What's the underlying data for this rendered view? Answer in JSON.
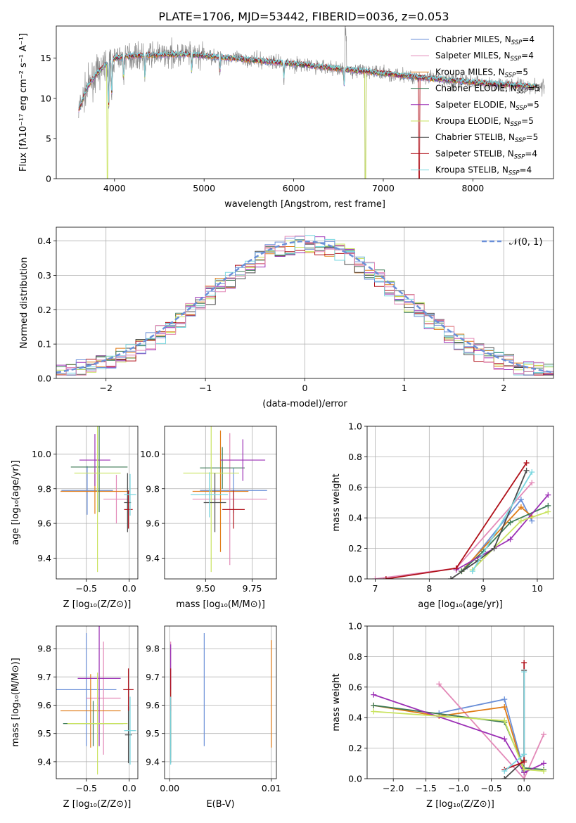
{
  "figure": {
    "title": "PLATE=1706, MJD=53442, FIBERID=0036, z=0.053"
  },
  "colors": [
    "#6a8fd8",
    "#e38ab8",
    "#e07b16",
    "#3d7a56",
    "#9b2fb5",
    "#c9e35f",
    "#4b4b4b",
    "#b0111a",
    "#7ad7e0"
  ],
  "legend": [
    {
      "label": "Chabrier MILES, N",
      "sub": "SSP",
      "tail": "=4"
    },
    {
      "label": "Salpeter MILES, N",
      "sub": "SSP",
      "tail": "=4"
    },
    {
      "label": "Kroupa MILES, N",
      "sub": "SSP",
      "tail": "=5"
    },
    {
      "label": "Chabrier ELODIE, N",
      "sub": "SSP",
      "tail": "=5"
    },
    {
      "label": "Salpeter ELODIE, N",
      "sub": "SSP",
      "tail": "=5"
    },
    {
      "label": "Kroupa ELODIE, N",
      "sub": "SSP",
      "tail": "=5"
    },
    {
      "label": "Chabrier STELIB, N",
      "sub": "SSP",
      "tail": "=5"
    },
    {
      "label": "Salpeter STELIB, N",
      "sub": "SSP",
      "tail": "=4"
    },
    {
      "label": "Kroupa STELIB, N",
      "sub": "SSP",
      "tail": "=4"
    }
  ],
  "chart_data": [
    {
      "type": "line",
      "id": "spectrum",
      "xlabel": "wavelength [Angstrom, rest frame]",
      "ylabel": "Flux [fλ10⁻¹⁷ erg cm⁻² s⁻¹ A⁻¹]",
      "xlim": [
        3350,
        8900
      ],
      "ylim": [
        0,
        19
      ],
      "xticks": [
        "4000",
        "5000",
        "6000",
        "7000",
        "8000"
      ],
      "yticks": [
        "0",
        "5",
        "10",
        "15"
      ],
      "continuum_x": [
        3600,
        3700,
        3800,
        3900,
        4000,
        4200,
        4500,
        4800,
        5100,
        5500,
        6000,
        6500,
        7000,
        7500,
        8000,
        8500,
        8800
      ],
      "continuum_y": [
        8.5,
        11.5,
        13.0,
        14.2,
        15.0,
        15.3,
        15.4,
        15.5,
        15.2,
        14.8,
        14.3,
        13.7,
        13.1,
        12.5,
        12.0,
        11.6,
        11.4
      ],
      "grid": false
    },
    {
      "type": "step",
      "id": "residuals",
      "xlabel": "(data-model)/error",
      "ylabel": "Normed distribution",
      "xlim": [
        -2.5,
        2.5
      ],
      "ylim": [
        0,
        0.44
      ],
      "xticks": [
        "−2",
        "−1",
        "0",
        "1",
        "2"
      ],
      "yticks": [
        "0.0",
        "0.1",
        "0.2",
        "0.3",
        "0.4"
      ],
      "bin_width": 0.1,
      "gaussian_label": "𝒩(0, 1)",
      "grid": true
    },
    {
      "type": "errorbar",
      "id": "age-vs-z",
      "xlabel": "Z [log₁₀(Z/Z⊙)]",
      "ylabel": "age  [log₁₀(age/yr)]",
      "xlim": [
        -0.85,
        0.1
      ],
      "ylim": [
        9.28,
        10.16
      ],
      "xticks": [
        "−0.5",
        "0.0"
      ],
      "yticks": [
        "9.4",
        "9.6",
        "9.8",
        "10.0"
      ],
      "points": [
        {
          "x": -0.49,
          "xerr": 0.3,
          "y": 9.79,
          "yerr": 0.14
        },
        {
          "x": -0.15,
          "xerr": 0.15,
          "y": 9.74,
          "yerr": 0.14
        },
        {
          "x": -0.4,
          "xerr": 0.4,
          "y": 9.785,
          "yerr": 0.13
        },
        {
          "x": -0.35,
          "xerr": 0.33,
          "y": 9.925,
          "yerr": 0.26
        },
        {
          "x": -0.4,
          "xerr": 0.18,
          "y": 9.965,
          "yerr": 0.15
        },
        {
          "x": -0.37,
          "xerr": 0.27,
          "y": 9.89,
          "yerr": 0.57
        },
        {
          "x": -0.02,
          "xerr": 0.04,
          "y": 9.72,
          "yerr": 0.17
        },
        {
          "x": -0.01,
          "xerr": 0.05,
          "y": 9.68,
          "yerr": 0.11
        },
        {
          "x": 0.01,
          "xerr": 0.07,
          "y": 9.765,
          "yerr": 0.12
        }
      ]
    },
    {
      "type": "errorbar",
      "id": "age-vs-mass",
      "xlabel": "mass [log₁₀(M/M⊙)]",
      "ylabel": "",
      "xlim": [
        9.28,
        9.88
      ],
      "ylim": [
        9.28,
        10.16
      ],
      "xticks": [
        "9.50",
        "9.75"
      ],
      "yticks": [
        "9.4",
        "9.6",
        "9.8",
        "10.0"
      ],
      "points": [
        {
          "x": 9.65,
          "xerr": 0.18,
          "y": 9.79,
          "yerr": 0.13
        },
        {
          "x": 9.63,
          "xerr": 0.2,
          "y": 9.74,
          "yerr": 0.38
        },
        {
          "x": 9.58,
          "xerr": 0.15,
          "y": 9.785,
          "yerr": 0.35
        },
        {
          "x": 9.59,
          "xerr": 0.12,
          "y": 9.92,
          "yerr": 0.12
        },
        {
          "x": 9.7,
          "xerr": 0.12,
          "y": 9.965,
          "yerr": 0.12
        },
        {
          "x": 9.53,
          "xerr": 0.15,
          "y": 9.89,
          "yerr": 0.57
        },
        {
          "x": 9.55,
          "xerr": 0.06,
          "y": 9.72,
          "yerr": 0.17
        },
        {
          "x": 9.65,
          "xerr": 0.06,
          "y": 9.68,
          "yerr": 0.11
        },
        {
          "x": 9.52,
          "xerr": 0.1,
          "y": 9.765,
          "yerr": 0.13
        }
      ]
    },
    {
      "type": "line",
      "id": "weight-vs-age",
      "xlabel": "age  [log₁₀(age/yr)]",
      "ylabel": "mass weight",
      "xlim": [
        6.85,
        10.3
      ],
      "ylim": [
        0,
        1
      ],
      "xticks": [
        "7",
        "8",
        "9",
        "10"
      ],
      "yticks": [
        "0.0",
        "0.2",
        "0.4",
        "0.6",
        "0.8",
        "1.0"
      ],
      "grid": true,
      "series": [
        {
          "x": [
            8.7,
            9.7,
            9.9
          ],
          "y": [
            0.08,
            0.52,
            0.38
          ]
        },
        {
          "x": [
            7.0,
            8.5,
            9.9
          ],
          "y": [
            0.0,
            0.07,
            0.63
          ]
        },
        {
          "x": [
            8.6,
            9.7,
            9.9
          ],
          "y": [
            0.05,
            0.47,
            0.41
          ]
        },
        {
          "x": [
            8.6,
            9.0,
            9.5,
            10.2
          ],
          "y": [
            0.05,
            0.18,
            0.37,
            0.48
          ]
        },
        {
          "x": [
            8.5,
            9.5,
            10.2
          ],
          "y": [
            0.06,
            0.26,
            0.55
          ]
        },
        {
          "x": [
            8.8,
            9.7,
            10.2
          ],
          "y": [
            0.06,
            0.38,
            0.44
          ]
        },
        {
          "x": [
            8.4,
            8.9,
            9.2,
            9.8
          ],
          "y": [
            0.0,
            0.12,
            0.2,
            0.71
          ]
        },
        {
          "x": [
            7.2,
            8.5,
            9.8
          ],
          "y": [
            0.0,
            0.07,
            0.76
          ]
        },
        {
          "x": [
            8.8,
            9.9
          ],
          "y": [
            0.05,
            0.7
          ]
        }
      ]
    },
    {
      "type": "errorbar",
      "id": "mass-vs-z",
      "xlabel": "Z [log₁₀(Z/Z⊙)]",
      "ylabel": "mass [log₁₀(M/M⊙)]",
      "xlim": [
        -0.85,
        0.1
      ],
      "ylim": [
        9.34,
        9.88
      ],
      "xticks": [
        "−0.5",
        "0.0"
      ],
      "yticks": [
        "9.4",
        "9.5",
        "9.6",
        "9.7",
        "9.8"
      ],
      "points": [
        {
          "x": -0.5,
          "xerr": 0.35,
          "y": 9.655,
          "yerr": 0.2
        },
        {
          "x": -0.3,
          "xerr": 0.2,
          "y": 9.625,
          "yerr": 0.2
        },
        {
          "x": -0.45,
          "xerr": 0.35,
          "y": 9.58,
          "yerr": 0.13
        },
        {
          "x": -0.42,
          "xerr": 0.35,
          "y": 9.535,
          "yerr": 0.08
        },
        {
          "x": -0.35,
          "xerr": 0.25,
          "y": 9.695,
          "yerr": 0.24
        },
        {
          "x": -0.37,
          "xerr": 0.35,
          "y": 9.535,
          "yerr": 0.18
        },
        {
          "x": -0.01,
          "xerr": 0.04,
          "y": 9.495,
          "yerr": 0.1
        },
        {
          "x": -0.01,
          "xerr": 0.06,
          "y": 9.655,
          "yerr": 0.075
        },
        {
          "x": 0.01,
          "xerr": 0.07,
          "y": 9.51,
          "yerr": 0.12
        }
      ]
    },
    {
      "type": "errorbar",
      "id": "mass-vs-ebv",
      "xlabel": "E(B-V)",
      "ylabel": "",
      "xlim": [
        -0.0005,
        0.0105
      ],
      "ylim": [
        9.34,
        9.88
      ],
      "xticks": [
        "0.00",
        "0.01"
      ],
      "yticks": [
        "9.4",
        "9.5",
        "9.6",
        "9.7",
        "9.8"
      ],
      "points": [
        {
          "x": 0.0034,
          "y": 9.655,
          "yerr": 0.2
        },
        {
          "x": 0.0001,
          "y": 9.625,
          "yerr": 0.2
        },
        {
          "x": 0.01,
          "y": 9.64,
          "yerr": 0.19
        },
        {
          "x": 0.0001,
          "y": 9.535,
          "yerr": 0.08
        },
        {
          "x": 0.0001,
          "y": 9.695,
          "yerr": 0.12
        },
        {
          "x": 0.0001,
          "y": 9.535,
          "yerr": 0.12
        },
        {
          "x": 0.0001,
          "y": 9.495,
          "yerr": 0.1
        },
        {
          "x": 0.0001,
          "y": 9.655,
          "yerr": 0.075
        },
        {
          "x": 0.0001,
          "y": 9.51,
          "yerr": 0.12
        }
      ]
    },
    {
      "type": "line",
      "id": "weight-vs-z",
      "xlabel": "Z [log₁₀(Z/Z⊙)]",
      "ylabel": "mass weight",
      "xlim": [
        -2.4,
        0.45
      ],
      "ylim": [
        0,
        1
      ],
      "xticks": [
        "−2.0",
        "−1.5",
        "−1.0",
        "−0.5",
        "0.0"
      ],
      "yticks": [
        "0.0",
        "0.2",
        "0.4",
        "0.6",
        "0.8",
        "1.0"
      ],
      "grid": true,
      "series": [
        {
          "x": [
            -1.3,
            -0.3,
            0.0
          ],
          "y": [
            0.43,
            0.52,
            0.05
          ]
        },
        {
          "x": [
            -1.3,
            0.0,
            0.3
          ],
          "y": [
            0.62,
            0.0,
            0.29
          ]
        },
        {
          "x": [
            -2.3,
            -1.3,
            -0.3,
            0.0
          ],
          "y": [
            0.48,
            0.41,
            0.47,
            0.04
          ]
        },
        {
          "x": [
            -2.3,
            -0.3,
            0.0,
            0.3
          ],
          "y": [
            0.48,
            0.37,
            0.07,
            0.06
          ]
        },
        {
          "x": [
            -2.3,
            -0.3,
            0.0,
            0.3
          ],
          "y": [
            0.55,
            0.26,
            0.04,
            0.1
          ]
        },
        {
          "x": [
            -2.3,
            -0.3,
            0.0,
            0.3
          ],
          "y": [
            0.44,
            0.38,
            0.06,
            0.05
          ]
        },
        {
          "x": [
            -0.3,
            0.0,
            0.0
          ],
          "y": [
            0.0,
            0.12,
            0.71
          ]
        },
        {
          "x": [
            -0.3,
            0.0,
            0.0
          ],
          "y": [
            0.06,
            0.11,
            0.76
          ]
        },
        {
          "x": [
            -0.3,
            0.0,
            0.0
          ],
          "y": [
            0.05,
            0.16,
            0.7
          ]
        }
      ]
    }
  ]
}
